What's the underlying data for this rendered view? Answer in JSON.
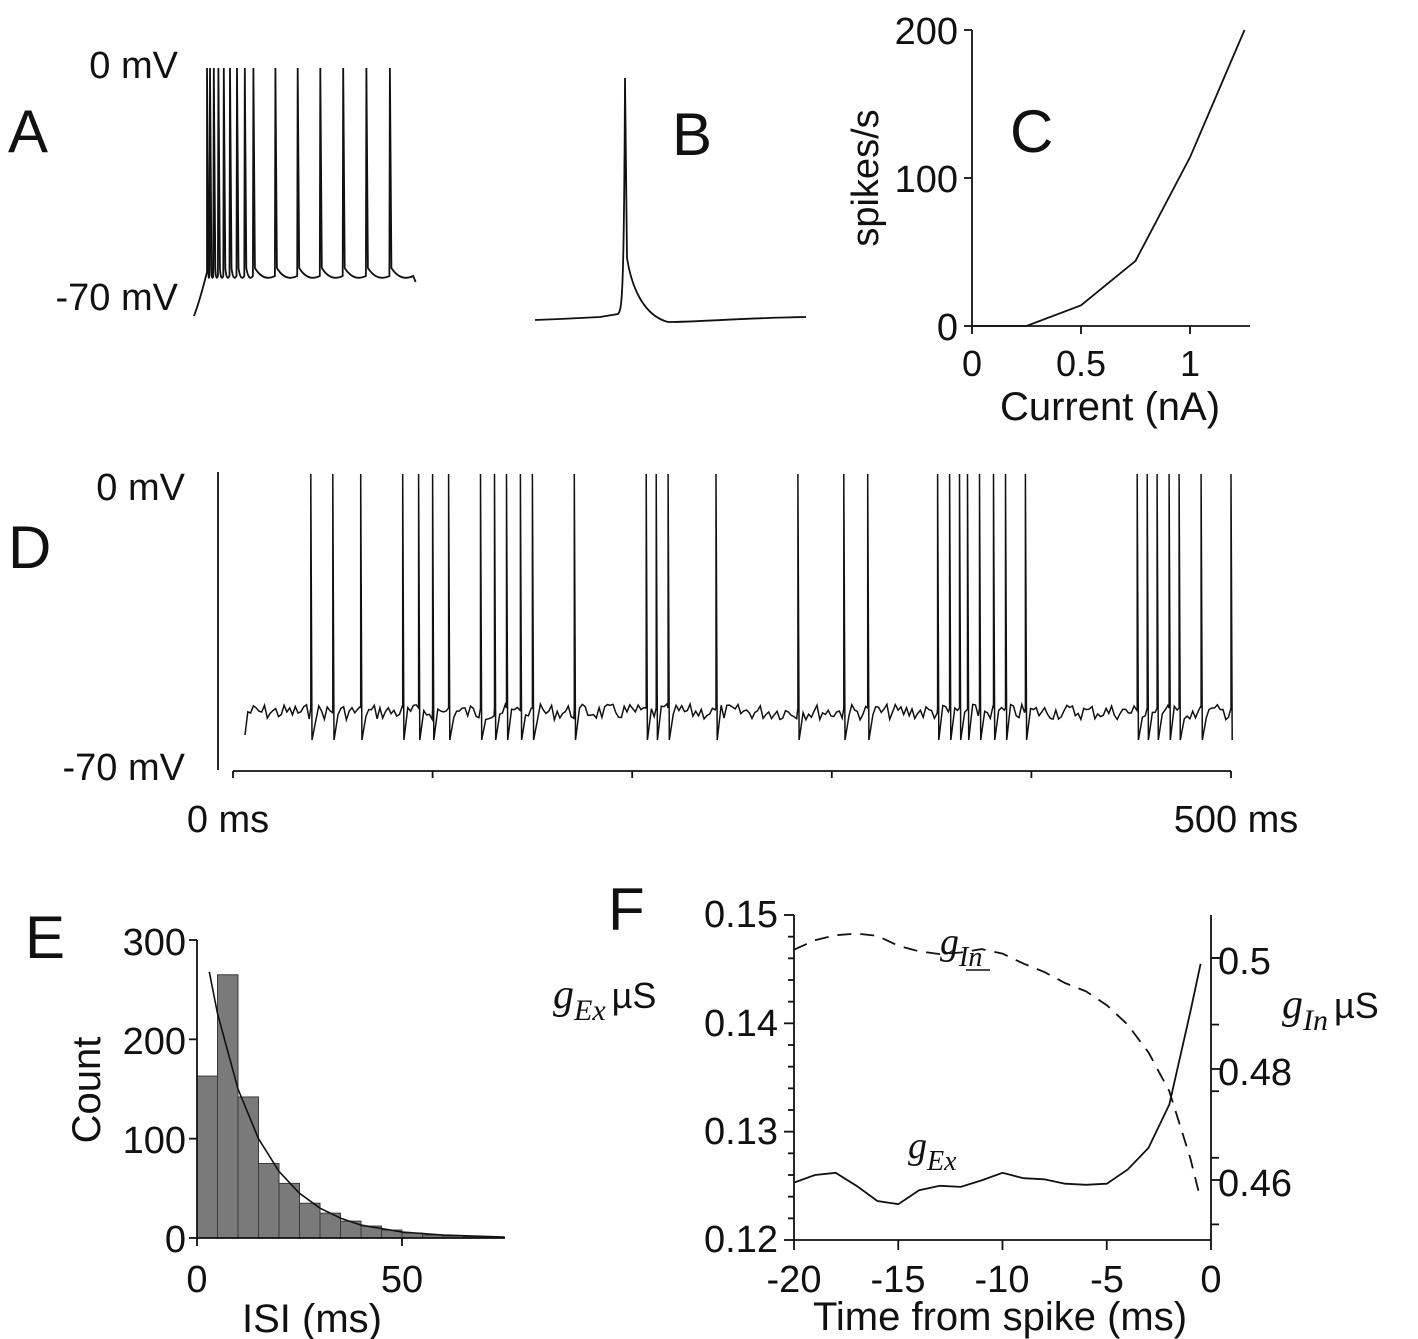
{
  "panels": {
    "A": {
      "letter": "A",
      "top_label": "0 mV",
      "bottom_label": "-70 mV",
      "spike_count": 15
    },
    "B": {
      "letter": "B"
    },
    "C": {
      "letter": "C",
      "ylabel": "spikes/s",
      "xlabel": "Current (nA)",
      "yticks": [
        "0",
        "100",
        "200"
      ],
      "xticks": [
        "0",
        "0.5",
        "1"
      ]
    },
    "D": {
      "letter": "D",
      "top_label": "0 mV",
      "bottom_label": "-70 mV",
      "time_start": "0 ms",
      "time_end": "500 ms",
      "spike_times_ms": [
        39,
        50,
        64,
        85,
        93,
        100,
        108,
        124,
        131,
        137,
        144,
        150,
        171,
        207,
        212,
        218,
        242,
        283,
        306,
        318,
        353,
        359,
        364,
        368,
        374,
        381,
        387,
        397,
        453,
        458,
        463,
        469,
        474,
        485,
        500
      ]
    },
    "E": {
      "letter": "E",
      "ylabel": "Count",
      "xlabel": "ISI (ms)",
      "yticks": [
        "0",
        "100",
        "200",
        "300"
      ],
      "xticks": [
        "0",
        "50"
      ]
    },
    "F": {
      "letter": "F",
      "left_axis_label": "g",
      "left_axis_sub": "Ex",
      "left_axis_unit": "µS",
      "right_axis_label": "g",
      "right_axis_sub": "In",
      "right_axis_unit": "µS",
      "xlabel": "Time from spike (ms)",
      "left_yticks": [
        "0.12",
        "0.13",
        "0.14",
        "0.15"
      ],
      "right_yticks": [
        "0.46",
        "0.48",
        "0.5"
      ],
      "xticks": [
        "-20",
        "-15",
        "-10",
        "-5",
        "0"
      ],
      "curve_label_in": "g",
      "curve_label_in_sub": "In",
      "curve_label_ex": "g",
      "curve_label_ex_sub": "Ex"
    }
  },
  "chart_data": [
    {
      "panel": "C",
      "type": "line",
      "xlabel": "Current (nA)",
      "ylabel": "spikes/s",
      "xlim": [
        0,
        1.25
      ],
      "ylim": [
        0,
        200
      ],
      "x": [
        0,
        0.25,
        0.5,
        0.75,
        1.0,
        1.25
      ],
      "y": [
        0,
        0,
        14,
        44,
        114,
        200
      ]
    },
    {
      "panel": "E",
      "type": "bar",
      "xlabel": "ISI (ms)",
      "ylabel": "Count",
      "xlim": [
        0,
        75
      ],
      "ylim": [
        0,
        300
      ],
      "bin_edges": [
        0,
        5,
        10,
        15,
        20,
        25,
        30,
        35,
        40,
        45,
        50,
        55,
        60,
        65,
        70,
        75
      ],
      "values": [
        163,
        265,
        142,
        75,
        55,
        35,
        25,
        17,
        12,
        8,
        5,
        3,
        2,
        1,
        1
      ],
      "fit": {
        "x": [
          3,
          5,
          10,
          15,
          20,
          25,
          30,
          35,
          40,
          50,
          60,
          75
        ],
        "y": [
          268,
          226,
          150,
          100,
          67,
          45,
          30,
          20,
          13,
          6,
          3,
          1
        ]
      }
    },
    {
      "panel": "F",
      "type": "line",
      "xlabel": "Time from spike (ms)",
      "xlim": [
        -20,
        0
      ],
      "series": [
        {
          "name": "g_Ex",
          "axis": "left",
          "ylim": [
            0.12,
            0.15
          ],
          "x": [
            -20,
            -19,
            -18,
            -17,
            -16,
            -15,
            -14,
            -13,
            -12,
            -11,
            -10,
            -9,
            -8,
            -7,
            -6,
            -5,
            -4,
            -3,
            -2,
            -1,
            -0.5
          ],
          "y": [
            0.1253,
            0.126,
            0.1262,
            0.125,
            0.1236,
            0.1233,
            0.1246,
            0.125,
            0.1249,
            0.1255,
            0.1262,
            0.1257,
            0.1256,
            0.1252,
            0.1251,
            0.1252,
            0.1265,
            0.1285,
            0.1325,
            0.141,
            0.1455
          ]
        },
        {
          "name": "g_In",
          "axis": "right",
          "ylim": [
            0.447,
            0.508
          ],
          "x": [
            -20,
            -19,
            -18,
            -17,
            -16,
            -15,
            -14,
            -13,
            -12,
            -11,
            -10,
            -9,
            -8,
            -7,
            -6,
            -5,
            -4,
            -3,
            -2,
            -1,
            -0.5
          ],
          "y": [
            0.5015,
            0.5032,
            0.5041,
            0.5044,
            0.504,
            0.5022,
            0.5012,
            0.5007,
            0.501,
            0.5016,
            0.5008,
            0.499,
            0.4975,
            0.4955,
            0.494,
            0.4915,
            0.488,
            0.483,
            0.476,
            0.464,
            0.4565
          ]
        }
      ]
    }
  ]
}
